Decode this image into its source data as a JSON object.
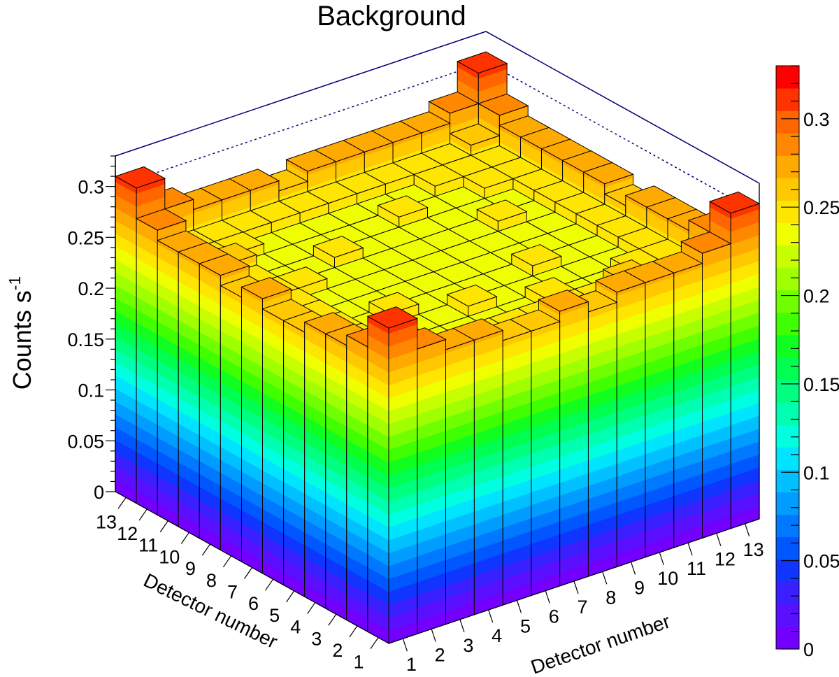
{
  "chart_data": {
    "type": "lego3d",
    "title": "Background",
    "xlabel": "Detector number",
    "ylabel": "Detector number",
    "zlabel": "Counts s",
    "zlabel_sup": "-1",
    "x": [
      "1",
      "2",
      "3",
      "4",
      "5",
      "6",
      "7",
      "8",
      "9",
      "10",
      "11",
      "12",
      "13"
    ],
    "y": [
      "1",
      "2",
      "3",
      "4",
      "5",
      "6",
      "7",
      "8",
      "9",
      "10",
      "11",
      "12",
      "13"
    ],
    "zlim": [
      0,
      0.33
    ],
    "z_ticks": [
      "0",
      "0.05",
      "0.1",
      "0.15",
      "0.2",
      "0.25",
      "0.3"
    ],
    "palette_ticks": [
      "0",
      "0.05",
      "0.1",
      "0.15",
      "0.2",
      "0.25",
      "0.3"
    ],
    "palette_colors": [
      "#7300ff",
      "#5a10ff",
      "#3a20ff",
      "#1035ff",
      "#0056ff",
      "#0078ff",
      "#009cff",
      "#00c0ff",
      "#00e4ff",
      "#00ffe0",
      "#00ffb0",
      "#00ff80",
      "#00ff50",
      "#10ff20",
      "#40ff00",
      "#70ff00",
      "#a0ff00",
      "#c8ff00",
      "#f0ff00",
      "#ffe600",
      "#ffc800",
      "#ffaa00",
      "#ff8800",
      "#ff6600",
      "#ff3300",
      "#ff0000"
    ],
    "values": [
      [
        0.31,
        0.28,
        0.27,
        0.27,
        0.26,
        0.26,
        0.27,
        0.26,
        0.27,
        0.27,
        0.27,
        0.28,
        0.31
      ],
      [
        0.28,
        0.26,
        0.25,
        0.25,
        0.25,
        0.25,
        0.25,
        0.25,
        0.25,
        0.26,
        0.25,
        0.25,
        0.28
      ],
      [
        0.27,
        0.25,
        0.25,
        0.24,
        0.24,
        0.24,
        0.24,
        0.25,
        0.24,
        0.24,
        0.25,
        0.25,
        0.27
      ],
      [
        0.27,
        0.25,
        0.24,
        0.24,
        0.24,
        0.25,
        0.24,
        0.24,
        0.24,
        0.24,
        0.24,
        0.25,
        0.27
      ],
      [
        0.26,
        0.25,
        0.24,
        0.25,
        0.24,
        0.24,
        0.24,
        0.24,
        0.25,
        0.24,
        0.24,
        0.25,
        0.27
      ],
      [
        0.26,
        0.25,
        0.24,
        0.24,
        0.24,
        0.24,
        0.24,
        0.24,
        0.24,
        0.24,
        0.24,
        0.25,
        0.26
      ],
      [
        0.27,
        0.25,
        0.24,
        0.24,
        0.24,
        0.24,
        0.24,
        0.24,
        0.24,
        0.24,
        0.24,
        0.25,
        0.27
      ],
      [
        0.26,
        0.25,
        0.25,
        0.24,
        0.24,
        0.24,
        0.24,
        0.24,
        0.24,
        0.25,
        0.24,
        0.25,
        0.27
      ],
      [
        0.27,
        0.25,
        0.24,
        0.24,
        0.25,
        0.24,
        0.24,
        0.24,
        0.24,
        0.24,
        0.24,
        0.25,
        0.27
      ],
      [
        0.27,
        0.26,
        0.24,
        0.24,
        0.24,
        0.24,
        0.24,
        0.25,
        0.24,
        0.24,
        0.25,
        0.25,
        0.27
      ],
      [
        0.27,
        0.25,
        0.25,
        0.24,
        0.24,
        0.24,
        0.24,
        0.24,
        0.24,
        0.25,
        0.25,
        0.25,
        0.27
      ],
      [
        0.28,
        0.25,
        0.25,
        0.25,
        0.25,
        0.25,
        0.25,
        0.25,
        0.25,
        0.25,
        0.25,
        0.26,
        0.28
      ],
      [
        0.31,
        0.28,
        0.27,
        0.27,
        0.27,
        0.26,
        0.27,
        0.27,
        0.27,
        0.27,
        0.27,
        0.28,
        0.31
      ]
    ]
  }
}
